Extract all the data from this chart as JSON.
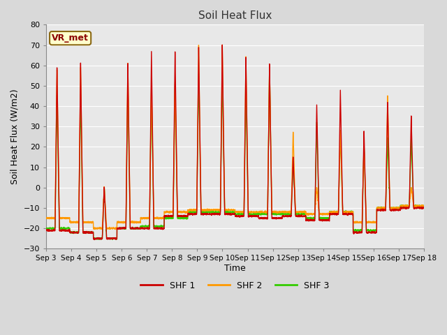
{
  "title": "Soil Heat Flux",
  "ylabel": "Soil Heat Flux (W/m2)",
  "xlabel": "Time",
  "ylim": [
    -30,
    80
  ],
  "yticks": [
    -30,
    -20,
    -10,
    0,
    10,
    20,
    30,
    40,
    50,
    60,
    70,
    80
  ],
  "xtick_labels": [
    "Sep 3",
    "Sep 4",
    "Sep 5",
    "Sep 6",
    "Sep 7",
    "Sep 8",
    "Sep 9",
    "Sep 10",
    "Sep 11",
    "Sep 12",
    "Sep 13",
    "Sep 14",
    "Sep 15",
    "Sep 16",
    "Sep 17",
    "Sep 18"
  ],
  "colors": {
    "SHF1": "#cc0000",
    "SHF2": "#ff9900",
    "SHF3": "#33cc00"
  },
  "legend_label": "VR_met",
  "plot_bg": "#e8e8e8",
  "fig_bg": "#d9d9d9",
  "grid_color": "#ffffff",
  "linewidth": 1.0,
  "day_peaks": {
    "SHF1": [
      60,
      62,
      0,
      62,
      68,
      68,
      70,
      71,
      65,
      62,
      16,
      42,
      49,
      29,
      43,
      36
    ],
    "SHF2": [
      59,
      60,
      0,
      62,
      53,
      53,
      71,
      71,
      65,
      61,
      28,
      0,
      29,
      22,
      46,
      0
    ],
    "SHF3": [
      46,
      47,
      0,
      52,
      51,
      52,
      57,
      58,
      48,
      61,
      14,
      33,
      29,
      23,
      25,
      25
    ]
  },
  "night_troughs": {
    "SHF1": [
      -21,
      -22,
      -25,
      -20,
      -20,
      -14,
      -13,
      -13,
      -14,
      -15,
      -14,
      -16,
      -13,
      -22,
      -11,
      -10
    ],
    "SHF2": [
      -15,
      -17,
      -20,
      -17,
      -15,
      -12,
      -11,
      -11,
      -12,
      -12,
      -12,
      -13,
      -12,
      -17,
      -10,
      -9
    ],
    "SHF3": [
      -20,
      -22,
      -25,
      -20,
      -19,
      -15,
      -12,
      -12,
      -13,
      -13,
      -13,
      -15,
      -12,
      -21,
      -10,
      -9
    ]
  }
}
